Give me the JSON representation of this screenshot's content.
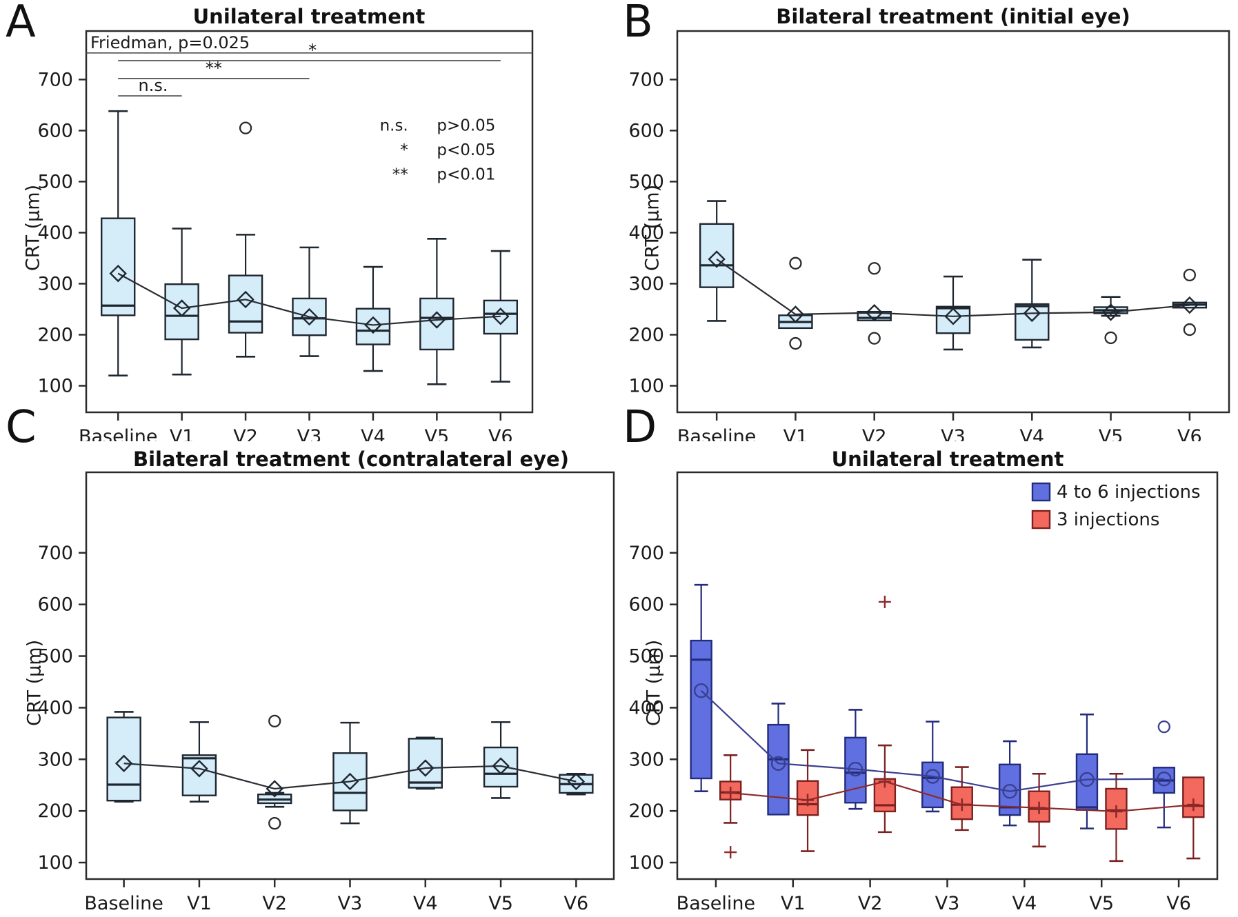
{
  "colors": {
    "axis": "#2b2b2b",
    "text": "#1a1a1a",
    "bracket": "#4a4a4a",
    "lightblue_fill": "#d5ecf9",
    "lightblue_stroke": "#1e2630",
    "dark_mean_line": "#2a2d33",
    "blue_fill": "#6070e0",
    "blue_stroke": "#232b7c",
    "blue_line": "#3a3f8f",
    "red_fill": "#f4695e",
    "red_stroke": "#7c2020",
    "red_line": "#8c2a2a"
  },
  "chart_data": [
    {
      "type": "box",
      "letter": "A",
      "title": "Unilateral treatment",
      "ylabel": "CRT (µm)",
      "xlabel": "",
      "categories": [
        "Baseline",
        "V1",
        "V2",
        "V3",
        "V4",
        "V5",
        "V6"
      ],
      "yticks": [
        100,
        200,
        300,
        400,
        500,
        600,
        700
      ],
      "annotations": {
        "stat_test": "Friedman, p=0.025",
        "stat_test_line_value": 752,
        "brackets": [
          {
            "from": 0,
            "to": 1,
            "value": 668,
            "label": "n.s.",
            "label_cat": 0.55
          },
          {
            "from": 0,
            "to": 3,
            "value": 702,
            "label": "**",
            "label_cat": 1.5
          },
          {
            "from": 0,
            "to": 6,
            "value": 737,
            "label": "*",
            "label_cat": 3.05
          }
        ],
        "sig_key": {
          "cat_x": 4.55,
          "values": [
            600,
            552,
            504
          ],
          "rows": [
            {
              "symbol": "n.s.",
              "meaning": "p>0.05"
            },
            {
              "symbol": "*",
              "meaning": "p<0.05"
            },
            {
              "symbol": "**",
              "meaning": "p<0.01"
            }
          ]
        }
      },
      "series": [
        {
          "name": "",
          "palette": "lightblue",
          "mean_marker": "diamond",
          "outlier_marker": "circle",
          "offset_frac": 0,
          "stats": [
            {
              "lo": 120,
              "q1": 238,
              "med": 257,
              "q3": 428,
              "hi": 638,
              "mean": 320,
              "out": []
            },
            {
              "lo": 122,
              "q1": 191,
              "med": 237,
              "q3": 299,
              "hi": 408,
              "mean": 252,
              "out": []
            },
            {
              "lo": 157,
              "q1": 204,
              "med": 226,
              "q3": 316,
              "hi": 396,
              "mean": 269,
              "out": [
                605
              ]
            },
            {
              "lo": 158,
              "q1": 199,
              "med": 232,
              "q3": 271,
              "hi": 371,
              "mean": 235,
              "out": []
            },
            {
              "lo": 129,
              "q1": 181,
              "med": 208,
              "q3": 251,
              "hi": 333,
              "mean": 219,
              "out": []
            },
            {
              "lo": 103,
              "q1": 171,
              "med": 233,
              "q3": 271,
              "hi": 388,
              "mean": 229,
              "out": []
            },
            {
              "lo": 108,
              "q1": 202,
              "med": 241,
              "q3": 267,
              "hi": 364,
              "mean": 236,
              "out": []
            }
          ]
        }
      ]
    },
    {
      "type": "box",
      "letter": "B",
      "title": "Bilateral treatment (initial eye)",
      "ylabel": "CRT (µm)",
      "xlabel": "",
      "categories": [
        "Baseline",
        "V1",
        "V2",
        "V3",
        "V4",
        "V5",
        "V6"
      ],
      "yticks": [
        100,
        200,
        300,
        400,
        500,
        600,
        700
      ],
      "series": [
        {
          "name": "",
          "palette": "lightblue",
          "mean_marker": "diamond",
          "outlier_marker": "circle",
          "offset_frac": 0,
          "stats": [
            {
              "lo": 227,
              "q1": 293,
              "med": 336,
              "q3": 417,
              "hi": 462,
              "mean": 348,
              "out": []
            },
            {
              "lo": 213,
              "q1": 213,
              "med": 225,
              "q3": 238,
              "hi": 238,
              "mean": 240,
              "out": [
                340,
                183
              ]
            },
            {
              "lo": 228,
              "q1": 228,
              "med": 233,
              "q3": 245,
              "hi": 245,
              "mean": 243,
              "out": [
                330,
                193
              ]
            },
            {
              "lo": 171,
              "q1": 203,
              "med": 252,
              "q3": 255,
              "hi": 314,
              "mean": 236,
              "out": []
            },
            {
              "lo": 175,
              "q1": 190,
              "med": 256,
              "q3": 260,
              "hi": 347,
              "mean": 242,
              "out": []
            },
            {
              "lo": 237,
              "q1": 242,
              "med": 248,
              "q3": 254,
              "hi": 274,
              "mean": 244,
              "out": [
                194
              ]
            },
            {
              "lo": 253,
              "q1": 253,
              "med": 259,
              "q3": 263,
              "hi": 263,
              "mean": 258,
              "out": [
                317,
                210
              ]
            }
          ]
        }
      ]
    },
    {
      "type": "box",
      "letter": "C",
      "title": "Bilateral treatment (contralateral eye)",
      "ylabel": "CRT (µm)",
      "xlabel": "",
      "categories": [
        "Baseline",
        "V1",
        "V2",
        "V3",
        "V4",
        "V5",
        "V6"
      ],
      "yticks": [
        100,
        200,
        300,
        400,
        500,
        600,
        700
      ],
      "series": [
        {
          "name": "",
          "palette": "lightblue",
          "mean_marker": "diamond",
          "outlier_marker": "circle",
          "offset_frac": 0,
          "stats": [
            {
              "lo": 218,
              "q1": 220,
              "med": 251,
              "q3": 381,
              "hi": 392,
              "mean": 292,
              "out": []
            },
            {
              "lo": 218,
              "q1": 230,
              "med": 302,
              "q3": 308,
              "hi": 372,
              "mean": 282,
              "out": []
            },
            {
              "lo": 208,
              "q1": 215,
              "med": 222,
              "q3": 232,
              "hi": 235,
              "mean": 243,
              "out": [
                374,
                176
              ]
            },
            {
              "lo": 176,
              "q1": 201,
              "med": 235,
              "q3": 312,
              "hi": 371,
              "mean": 257,
              "out": []
            },
            {
              "lo": 243,
              "q1": 245,
              "med": 255,
              "q3": 340,
              "hi": 342,
              "mean": 283,
              "out": []
            },
            {
              "lo": 225,
              "q1": 247,
              "med": 272,
              "q3": 323,
              "hi": 372,
              "mean": 287,
              "out": []
            },
            {
              "lo": 232,
              "q1": 235,
              "med": 252,
              "q3": 270,
              "hi": 272,
              "mean": 257,
              "out": []
            }
          ]
        }
      ]
    },
    {
      "type": "box",
      "letter": "D",
      "title": "Unilateral treatment",
      "ylabel": "CRT (µm)",
      "xlabel": "",
      "categories": [
        "Baseline",
        "V1",
        "V2",
        "V3",
        "V4",
        "V5",
        "V6"
      ],
      "yticks": [
        100,
        200,
        300,
        400,
        500,
        600,
        700
      ],
      "legend": {
        "entries": [
          {
            "label": "4 to 6 injections",
            "palette": "blue"
          },
          {
            "label": "3 injections",
            "palette": "red"
          }
        ]
      },
      "series": [
        {
          "name": "4 to 6 injections",
          "palette": "blue",
          "mean_marker": "circle",
          "outlier_marker": "circle",
          "offset_frac": -0.19,
          "stats": [
            {
              "lo": 238,
              "q1": 263,
              "med": 493,
              "q3": 530,
              "hi": 638,
              "mean": 433,
              "out": []
            },
            {
              "lo": 193,
              "q1": 193,
              "med": 300,
              "q3": 367,
              "hi": 408,
              "mean": 292,
              "out": []
            },
            {
              "lo": 204,
              "q1": 216,
              "med": 274,
              "q3": 342,
              "hi": 396,
              "mean": 281,
              "out": []
            },
            {
              "lo": 199,
              "q1": 207,
              "med": 264,
              "q3": 294,
              "hi": 373,
              "mean": 267,
              "out": []
            },
            {
              "lo": 172,
              "q1": 192,
              "med": 207,
              "q3": 290,
              "hi": 335,
              "mean": 238,
              "out": []
            },
            {
              "lo": 166,
              "q1": 202,
              "med": 207,
              "q3": 310,
              "hi": 387,
              "mean": 261,
              "out": []
            },
            {
              "lo": 168,
              "q1": 235,
              "med": 259,
              "q3": 284,
              "hi": 284,
              "mean": 262,
              "out": [
                363
              ]
            }
          ]
        },
        {
          "name": "3 injections",
          "palette": "red",
          "mean_marker": "plus",
          "outlier_marker": "plus",
          "offset_frac": 0.19,
          "stats": [
            {
              "lo": 177,
              "q1": 222,
              "med": 236,
              "q3": 257,
              "hi": 308,
              "mean": 235,
              "out": [
                120
              ]
            },
            {
              "lo": 122,
              "q1": 192,
              "med": 213,
              "q3": 258,
              "hi": 318,
              "mean": 221,
              "out": []
            },
            {
              "lo": 159,
              "q1": 199,
              "med": 211,
              "q3": 262,
              "hi": 327,
              "mean": 257,
              "out": [
                605
              ]
            },
            {
              "lo": 163,
              "q1": 184,
              "med": 212,
              "q3": 246,
              "hi": 285,
              "mean": 212,
              "out": []
            },
            {
              "lo": 131,
              "q1": 179,
              "med": 204,
              "q3": 238,
              "hi": 272,
              "mean": 206,
              "out": []
            },
            {
              "lo": 103,
              "q1": 165,
              "med": 201,
              "q3": 243,
              "hi": 272,
              "mean": 199,
              "out": []
            },
            {
              "lo": 108,
              "q1": 188,
              "med": 210,
              "q3": 265,
              "hi": 265,
              "mean": 212,
              "out": []
            }
          ]
        }
      ]
    }
  ]
}
